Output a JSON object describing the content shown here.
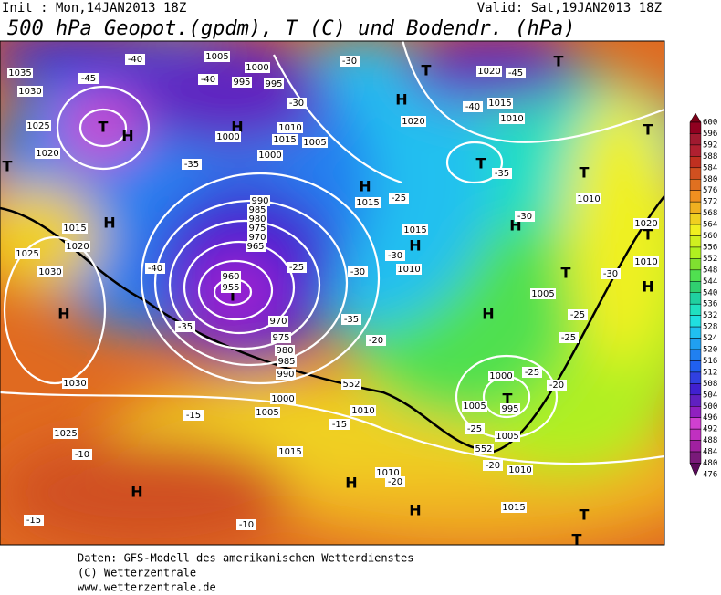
{
  "header": {
    "init": "Init : Mon,14JAN2013 18Z",
    "valid": "Valid: Sat,19JAN2013 18Z",
    "title": "500 hPa Geopot.(gpdm), T (C) und Bodendr. (hPa)"
  },
  "map": {
    "labels": [
      "H",
      "H",
      "H",
      "H",
      "H",
      "H",
      "H",
      "H",
      "H",
      "H",
      "H",
      "H",
      "H",
      "T",
      "T",
      "T",
      "T",
      "T",
      "T",
      "T",
      "T",
      "T",
      "T",
      "T",
      "T",
      "T",
      "1035",
      "1030",
      "1025",
      "1020",
      "1015",
      "1020",
      "1025",
      "1030",
      "1030",
      "1025",
      "1005",
      "1000",
      "995",
      "995",
      "1000",
      "1010",
      "1015",
      "1005",
      "990",
      "985",
      "980",
      "975",
      "970",
      "965",
      "960",
      "955",
      "970",
      "975",
      "980",
      "985",
      "990",
      "1000",
      "1005",
      "1010",
      "1015",
      "1015",
      "1020",
      "1015",
      "1010",
      "1000",
      "1005",
      "1010",
      "1020",
      "1015",
      "1010",
      "1010",
      "1005",
      "1000",
      "995",
      "1005",
      "1010",
      "1015",
      "1010",
      "1020",
      "-40",
      "-45",
      "-40",
      "-35",
      "-40",
      "-35",
      "-30",
      "-25",
      "-40",
      "-35",
      "-30",
      "-35",
      "-30",
      "-25",
      "-20",
      "-15",
      "-10",
      "-15",
      "-10",
      "-15",
      "-20",
      "-25",
      "-25",
      "-20",
      "-20",
      "-30",
      "-25",
      "-30",
      "-25",
      "-30",
      "-45",
      "552",
      "552"
    ]
  },
  "colorbar": {
    "ticks": [
      600,
      596,
      592,
      588,
      584,
      580,
      576,
      572,
      568,
      564,
      560,
      556,
      552,
      548,
      544,
      540,
      536,
      532,
      528,
      524,
      520,
      516,
      512,
      508,
      504,
      500,
      496,
      492,
      488,
      484,
      480,
      476
    ],
    "colors": [
      "#7a0018",
      "#900020",
      "#a01a30",
      "#b02030",
      "#c03020",
      "#d05020",
      "#e07020",
      "#f09020",
      "#f0b020",
      "#f0d020",
      "#f0f020",
      "#d0f020",
      "#b0f020",
      "#80e030",
      "#50e050",
      "#30d070",
      "#20d0a0",
      "#20e0c0",
      "#20e0e0",
      "#20c0f0",
      "#20a0f0",
      "#2080f0",
      "#2060f0",
      "#3040e0",
      "#4020d0",
      "#6020c0",
      "#9020c0",
      "#d040d0",
      "#c030c0",
      "#a020a0",
      "#7a1a7a",
      "#5a0a5a"
    ]
  },
  "footer": {
    "line1": "Daten: GFS-Modell des amerikanischen Wetterdienstes",
    "line2": "(C) Wetterzentrale",
    "line3": "www.wetterzentrale.de"
  }
}
